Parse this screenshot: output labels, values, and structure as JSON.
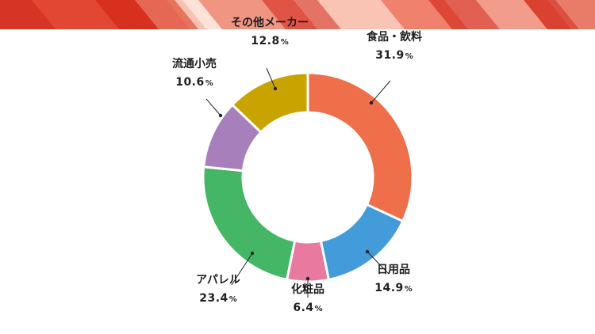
{
  "banner": {
    "colors": [
      "#d42a1a",
      "#e8553e",
      "#f3a08a",
      "#fde2d8"
    ]
  },
  "chart_data": {
    "type": "donut",
    "start_angle_deg": 0,
    "direction": "clockwise",
    "percent_symbol": "%",
    "slices": [
      {
        "label": "食品・飲料",
        "value": 31.9,
        "display": "31.9",
        "color": "#ee6f4a"
      },
      {
        "label": "日用品",
        "value": 14.9,
        "display": "14.9",
        "color": "#439bd9"
      },
      {
        "label": "化粧品",
        "value": 6.4,
        "display": "6.4",
        "color": "#e9799f"
      },
      {
        "label": "アパレル",
        "value": 23.4,
        "display": "23.4",
        "color": "#44b665"
      },
      {
        "label": "流通小売",
        "value": 10.6,
        "display": "10.6",
        "color": "#a67fbb"
      },
      {
        "label": "その他メーカー",
        "value": 12.8,
        "display": "12.8",
        "color": "#c9a300"
      }
    ]
  }
}
